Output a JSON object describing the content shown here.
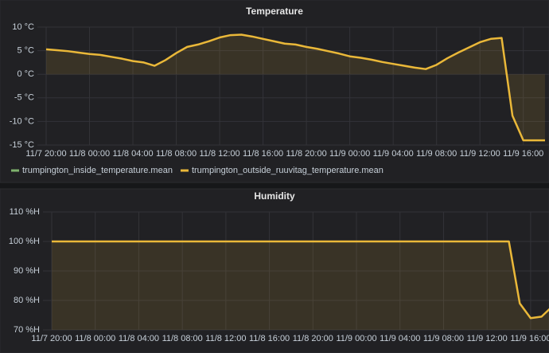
{
  "chart_data": [
    {
      "type": "line",
      "title": "Temperature",
      "x": [
        "11/7 20:00",
        null,
        null,
        null,
        "11/8 00:00",
        null,
        null,
        null,
        "11/8 04:00",
        null,
        null,
        null,
        "11/8 08:00",
        null,
        null,
        null,
        "11/8 12:00",
        null,
        null,
        null,
        "11/8 16:00",
        null,
        null,
        null,
        "11/8 20:00",
        null,
        null,
        null,
        "11/9 00:00",
        null,
        null,
        null,
        "11/9 04:00",
        null,
        null,
        null,
        "11/9 08:00",
        null,
        null,
        null,
        "11/9 12:00",
        null,
        null,
        null,
        "11/9 16:00",
        null,
        null
      ],
      "series": [
        {
          "name": "trumpington_inside_temperature.mean",
          "color": "#7eb26d",
          "values": [
            null,
            null,
            null,
            null,
            null,
            null,
            null,
            null,
            null,
            null,
            null,
            null,
            null,
            null,
            null,
            null,
            null,
            null,
            null,
            null,
            null,
            null,
            null,
            null,
            null,
            null,
            null,
            null,
            null,
            null,
            null,
            null,
            null,
            null,
            null,
            null,
            null,
            null,
            null,
            null,
            null,
            null,
            null,
            null,
            null,
            null,
            null
          ]
        },
        {
          "name": "trumpington_outside_ruuvitag_temperature.mean",
          "color": "#eab839",
          "values": [
            5.3,
            5.1,
            4.9,
            4.6,
            4.3,
            4.1,
            3.7,
            3.3,
            2.8,
            2.5,
            1.8,
            3.0,
            4.5,
            5.8,
            6.3,
            7.0,
            7.8,
            8.3,
            8.4,
            8.0,
            7.5,
            7.0,
            6.5,
            6.3,
            5.8,
            5.4,
            4.9,
            4.4,
            3.8,
            3.5,
            3.1,
            2.6,
            2.2,
            1.8,
            1.4,
            1.1,
            2.0,
            3.4,
            4.6,
            5.7,
            6.8,
            7.5,
            7.7,
            -8.8,
            -14,
            -14,
            -14
          ]
        }
      ],
      "ylim": [
        -15,
        10
      ],
      "yticks": [
        {
          "value": -15,
          "label": "-15 °C"
        },
        {
          "value": -10,
          "label": "-10 °C"
        },
        {
          "value": -5,
          "label": "-5 °C"
        },
        {
          "value": 0,
          "label": "0 °C"
        },
        {
          "value": 5,
          "label": "5 °C"
        },
        {
          "value": 10,
          "label": "10 °C"
        }
      ],
      "grid": true,
      "legend": "bottom"
    },
    {
      "type": "line",
      "title": "Humidity",
      "x": [
        "11/7 20:00",
        null,
        null,
        null,
        "11/8 00:00",
        null,
        null,
        null,
        "11/8 04:00",
        null,
        null,
        null,
        "11/8 08:00",
        null,
        null,
        null,
        "11/8 12:00",
        null,
        null,
        null,
        "11/8 16:00",
        null,
        null,
        null,
        "11/8 20:00",
        null,
        null,
        null,
        "11/9 00:00",
        null,
        null,
        null,
        "11/9 04:00",
        null,
        null,
        null,
        "11/9 08:00",
        null,
        null,
        null,
        "11/9 12:00",
        null,
        null,
        null,
        "11/9 16:00",
        null,
        null
      ],
      "series": [
        {
          "color": "#eab839",
          "values": [
            100,
            100,
            100,
            100,
            100,
            100,
            100,
            100,
            100,
            100,
            100,
            100,
            100,
            100,
            100,
            100,
            100,
            100,
            100,
            100,
            100,
            100,
            100,
            100,
            100,
            100,
            100,
            100,
            100,
            100,
            100,
            100,
            100,
            100,
            100,
            100,
            100,
            100,
            100,
            100,
            100,
            100,
            100,
            79,
            74,
            74.5,
            78
          ]
        }
      ],
      "ylim": [
        70,
        110
      ],
      "yticks": [
        {
          "value": 70,
          "label": "70 %H"
        },
        {
          "value": 80,
          "label": "80 %H"
        },
        {
          "value": 90,
          "label": "90 %H"
        },
        {
          "value": 100,
          "label": "100 %H"
        },
        {
          "value": 110,
          "label": "110 %H"
        }
      ],
      "grid": true
    }
  ]
}
